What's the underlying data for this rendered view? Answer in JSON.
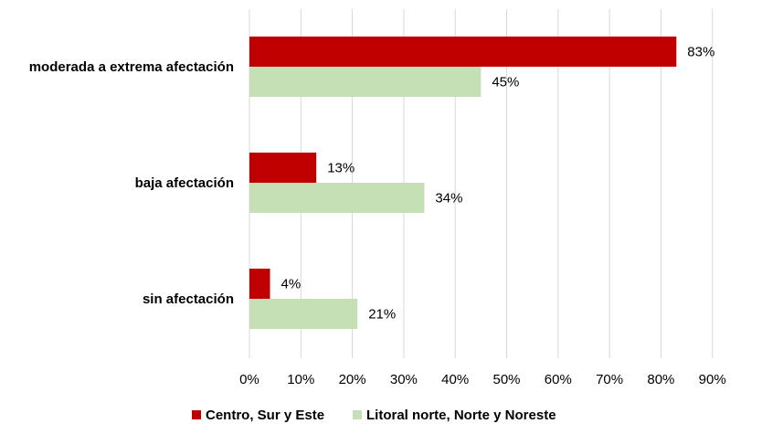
{
  "chart_data": {
    "type": "bar",
    "orientation": "horizontal",
    "categories": [
      "moderada a extrema afectación",
      "baja afectación",
      "sin afectación"
    ],
    "series": [
      {
        "name": "Centro, Sur y Este",
        "values": [
          83,
          13,
          4
        ],
        "labels": [
          "83%",
          "13%",
          "4%"
        ],
        "color": "#c00000"
      },
      {
        "name": "Litoral norte, Norte y Noreste",
        "values": [
          45,
          34,
          21
        ],
        "labels": [
          "45%",
          "34%",
          "21%"
        ],
        "color": "#c5e0b4"
      }
    ],
    "xlim": [
      0,
      90
    ],
    "xticks": [
      0,
      10,
      20,
      30,
      40,
      50,
      60,
      70,
      80,
      90
    ],
    "xtick_labels": [
      "0%",
      "10%",
      "20%",
      "30%",
      "40%",
      "50%",
      "60%",
      "70%",
      "80%",
      "90%"
    ],
    "grid": true,
    "legend_position": "bottom",
    "title": "",
    "xlabel": "",
    "ylabel": ""
  }
}
